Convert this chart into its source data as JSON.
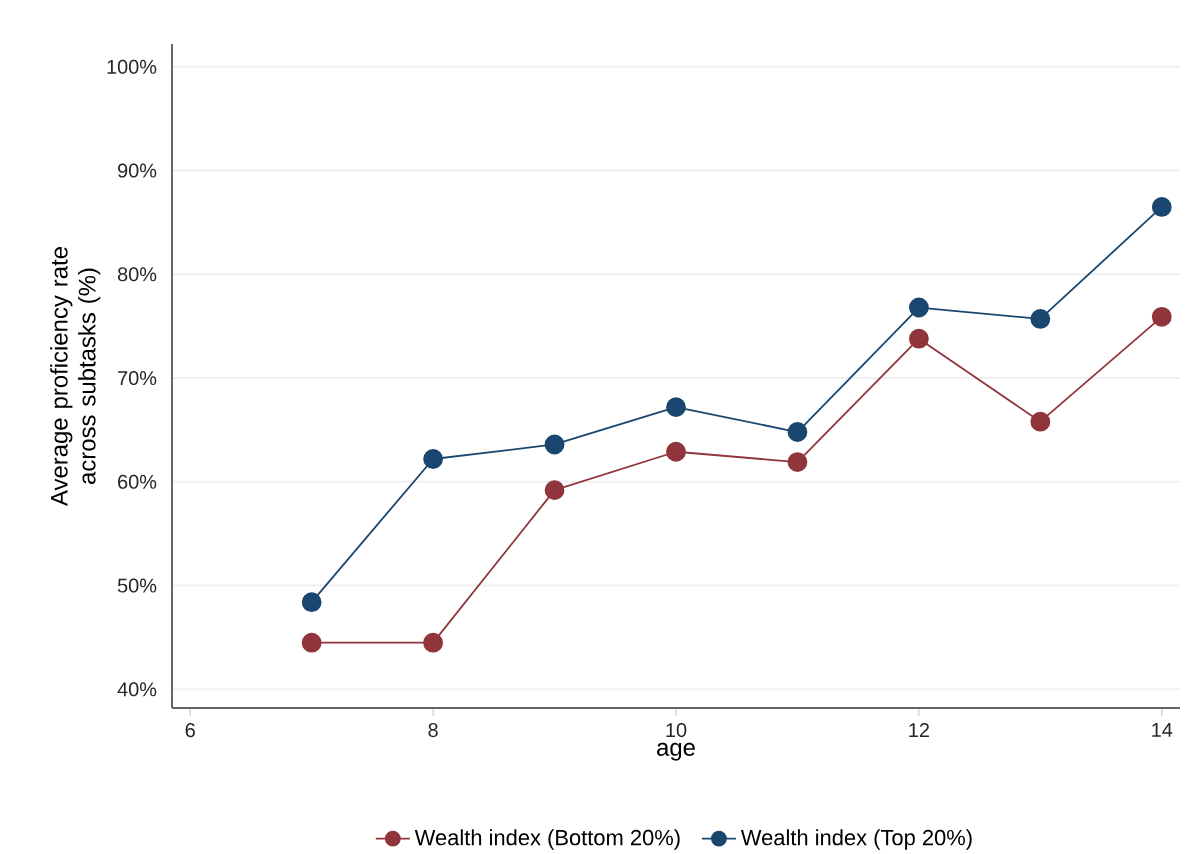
{
  "chart_data": {
    "type": "line",
    "xlabel": "age",
    "ylabel": "Average proficiency rate across subtasks (%)",
    "x": [
      7,
      8,
      9,
      10,
      11,
      12,
      13,
      14
    ],
    "series": [
      {
        "name": "Wealth index (Bottom 20%)",
        "color": "#90353b",
        "values": [
          44.5,
          44.5,
          59.2,
          62.9,
          61.9,
          73.8,
          65.8,
          75.9
        ]
      },
      {
        "name": "Wealth index (Top 20%)",
        "color": "#1a476f",
        "values": [
          48.4,
          62.2,
          63.6,
          67.2,
          64.8,
          76.8,
          75.7,
          86.5
        ]
      }
    ],
    "xlim": [
      5.85,
      14.15
    ],
    "xticks": [
      6,
      8,
      10,
      12,
      14
    ],
    "ylim": [
      38.2,
      102.2
    ],
    "yticks": [
      {
        "value": 40,
        "label": "40%"
      },
      {
        "value": 50,
        "label": "50%"
      },
      {
        "value": 60,
        "label": "60%"
      },
      {
        "value": 70,
        "label": "70%"
      },
      {
        "value": 80,
        "label": "80%"
      },
      {
        "value": 90,
        "label": "90%"
      },
      {
        "value": 100,
        "label": "100%"
      }
    ],
    "grid": "y",
    "legend": "bottom",
    "marker": "circle",
    "line_style": "solid"
  }
}
